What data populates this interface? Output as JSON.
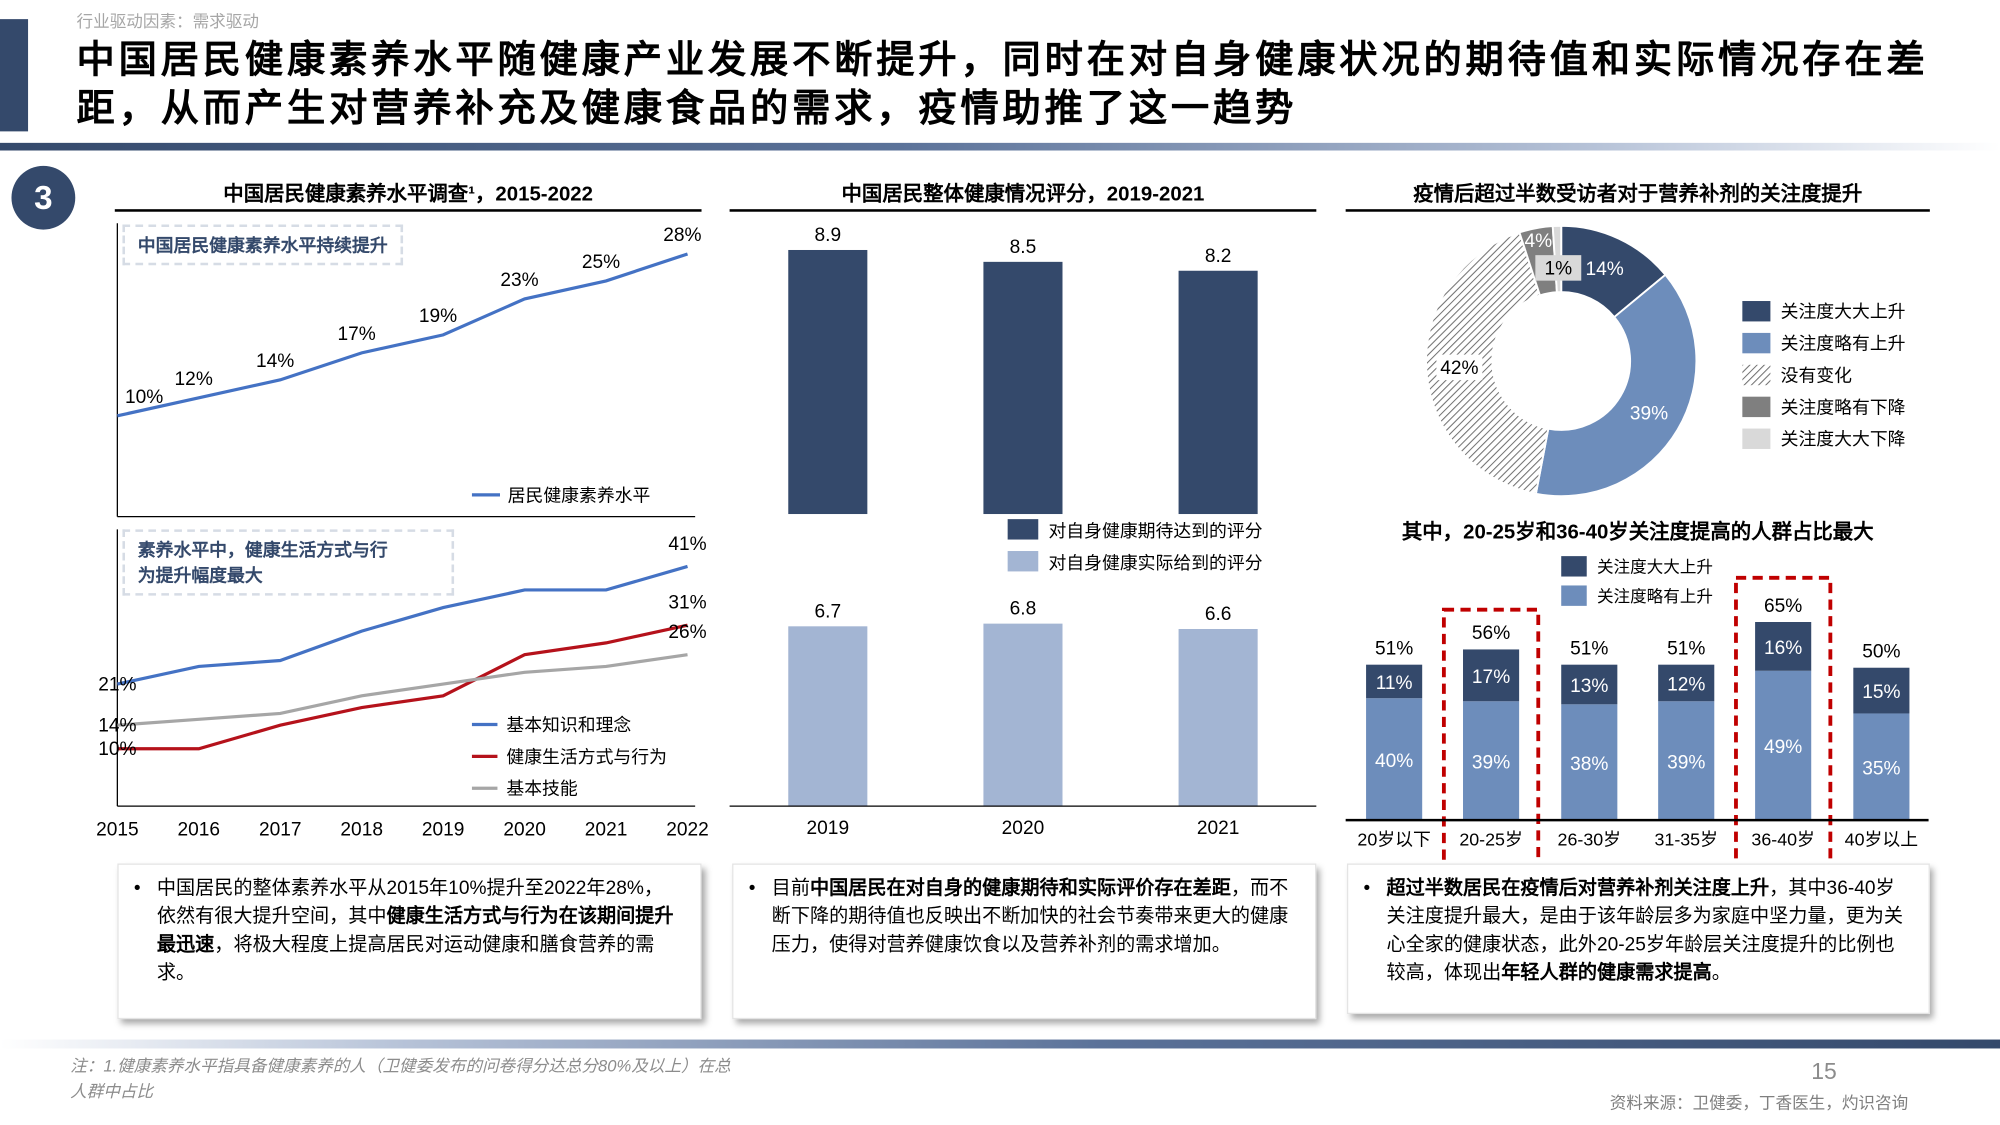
{
  "header": {
    "breadcrumb": "行业驱动因素：需求驱动",
    "title_line1": "中国居民健康素养水平随健康产业发展不断提升，同时在对自身健康状况的期待值和实际情况存在差",
    "title_line2": "距，从而产生对营养补充及健康食品的需求，疫情助推了这一趋势"
  },
  "section_number": "3",
  "panels": {
    "left": {
      "title": "中国居民健康素养水平调查¹，2015-2022",
      "top_callout": "中国居民健康素养水平持续提升",
      "bottom_callout_line1": "素养水平中，健康生活方式与行",
      "bottom_callout_line2": "为提升幅度最大"
    },
    "middle": {
      "title": "中国居民整体健康情况评分，2019-2021"
    },
    "right": {
      "title": "疫情后超过半数受访者对于营养补剂的关注度提升",
      "subtitle": "其中，20-25岁和36-40岁关注度提高的人群占比最大"
    }
  },
  "text_boxes": [
    {
      "parts": [
        {
          "text": "中国居民的整体素养水平从2015年10%提升至2022年28%，依然有很大提升空间，其中",
          "bold": false
        },
        {
          "text": "健康生活方式与行为在该期间提升最迅速",
          "bold": true
        },
        {
          "text": "，将极大程度上提高居民对运动健康和膳食营养的需求。",
          "bold": false
        }
      ]
    },
    {
      "parts": [
        {
          "text": "目前",
          "bold": false
        },
        {
          "text": "中国居民在对自身的健康期待和实际评价存在差距",
          "bold": true
        },
        {
          "text": "，而不断下降的期待值也反映出不断加快的社会节奏带来更大的健康压力，使得对营养健康饮食以及营养补剂的需求增加。",
          "bold": false
        }
      ]
    },
    {
      "parts": [
        {
          "text": "超过半数居民在疫情后对营养补剂关注度上升",
          "bold": true
        },
        {
          "text": "，其中36-40岁关注度提升最大，是由于该年龄层多为家庭中坚力量，更为关心全家的健康状态，此外20-25岁年龄层关注度提升的比例也较高，体现出",
          "bold": false
        },
        {
          "text": "年轻人群的健康需求提高",
          "bold": true
        },
        {
          "text": "。",
          "bold": false
        }
      ]
    }
  ],
  "footer": {
    "note_line1": "注：1.健康素养水平指具备健康素养的人（卫健委发布的问卷得分达总分80%及以上）在总",
    "note_line2": "人群中占比",
    "page_number": "15",
    "source": "资料来源：卫健委，丁香医生，灼识咨询"
  },
  "colors": {
    "navy": "#34496b",
    "medium_blue": "#6d8dbb",
    "light_blue": "#a3b5d3",
    "line_blue": "#4472c4",
    "line_red": "#b5121b",
    "line_grey": "#a6a6a6",
    "grey": "#7f7f7f",
    "light_grey": "#d9d9d9",
    "highlight_red": "#c00000"
  },
  "chart_data": [
    {
      "id": "literacy_total",
      "type": "line",
      "x": [
        2015,
        2016,
        2017,
        2018,
        2019,
        2020,
        2021,
        2022
      ],
      "series": [
        {
          "name": "居民健康素养水平",
          "values": [
            10,
            12,
            14,
            17,
            19,
            23,
            25,
            28
          ],
          "labels": [
            "10%",
            "12%",
            "14%",
            "17%",
            "19%",
            "23%",
            "25%",
            "28%"
          ],
          "color": "#4472c4"
        }
      ],
      "legend": "bottom-right"
    },
    {
      "id": "literacy_components",
      "type": "line",
      "x": [
        2015,
        2016,
        2017,
        2018,
        2019,
        2020,
        2021,
        2022
      ],
      "x_tick_labels": [
        "2015",
        "2016",
        "2017",
        "2018",
        "2019",
        "2020",
        "2021",
        "2022"
      ],
      "series": [
        {
          "name": "基本知识和理念",
          "values": [
            21,
            24,
            25,
            30,
            34,
            37,
            37,
            41
          ],
          "start_label": "21%",
          "end_label": "41%",
          "color": "#4472c4"
        },
        {
          "name": "健康生活方式与行为",
          "values": [
            10,
            10,
            14,
            17,
            19,
            26,
            28,
            31
          ],
          "start_label": "10%",
          "end_label": "31%",
          "color": "#b5121b"
        },
        {
          "name": "基本技能",
          "values": [
            14,
            15,
            16,
            19,
            21,
            23,
            24,
            26
          ],
          "start_label": "14%",
          "end_label": "26%",
          "color": "#a6a6a6"
        }
      ],
      "legend": "bottom-right"
    },
    {
      "id": "health_expected",
      "type": "bar",
      "categories": [
        "2019",
        "2020",
        "2021"
      ],
      "series": [
        {
          "name": "对自身健康期待达到的评分",
          "values": [
            8.9,
            8.5,
            8.2
          ],
          "color": "#34496b"
        }
      ]
    },
    {
      "id": "health_actual",
      "type": "bar",
      "categories": [
        "2019",
        "2020",
        "2021"
      ],
      "series": [
        {
          "name": "对自身健康实际给到的评分",
          "values": [
            6.7,
            6.8,
            6.6
          ],
          "color": "#a3b5d3"
        }
      ]
    },
    {
      "id": "supplement_attention",
      "type": "pie",
      "donut": true,
      "slices": [
        {
          "name": "关注度大大上升",
          "value": 14,
          "label": "14%",
          "color": "#34496b"
        },
        {
          "name": "关注度略有上升",
          "value": 39,
          "label": "39%",
          "color": "#6d8dbb"
        },
        {
          "name": "没有变化",
          "value": 42,
          "label": "42%",
          "color": "hatch"
        },
        {
          "name": "关注度略有下降",
          "value": 4,
          "label": "4%",
          "color": "#7f7f7f"
        },
        {
          "name": "关注度大大下降",
          "value": 1,
          "label": "1%",
          "color": "#d9d9d9"
        }
      ],
      "legend": "right"
    },
    {
      "id": "attention_by_age",
      "type": "bar",
      "stacked": true,
      "categories": [
        "20岁以下",
        "20-25岁",
        "26-30岁",
        "31-35岁",
        "36-40岁",
        "40岁以上"
      ],
      "series": [
        {
          "name": "关注度略有上升",
          "values": [
            40,
            39,
            38,
            39,
            49,
            35
          ],
          "color": "#6d8dbb"
        },
        {
          "name": "关注度大大上升",
          "values": [
            11,
            17,
            13,
            12,
            16,
            15
          ],
          "color": "#34496b"
        }
      ],
      "totals": [
        "51%",
        "56%",
        "51%",
        "51%",
        "65%",
        "50%"
      ],
      "highlighted": [
        "20-25岁",
        "36-40岁"
      ],
      "legend": "top"
    }
  ]
}
